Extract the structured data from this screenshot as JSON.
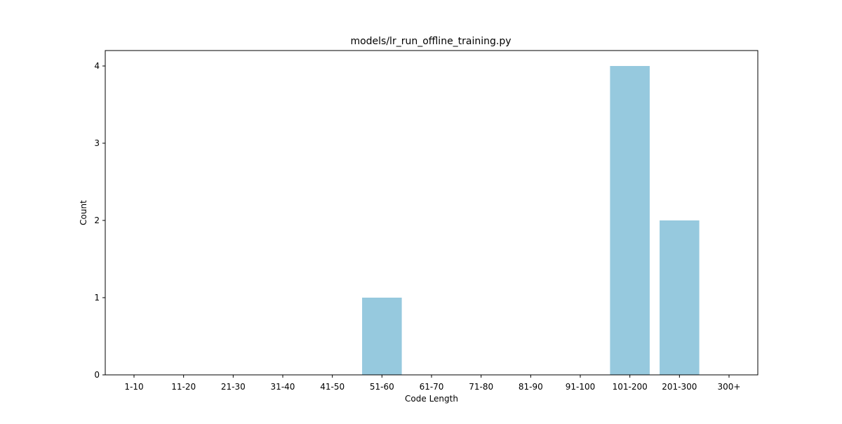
{
  "chart_data": {
    "type": "bar",
    "title": "models/lr_run_offline_training.py",
    "xlabel": "Code Length",
    "ylabel": "Count",
    "categories": [
      "1-10",
      "11-20",
      "21-30",
      "31-40",
      "41-50",
      "51-60",
      "61-70",
      "71-80",
      "81-90",
      "91-100",
      "101-200",
      "201-300",
      "300+"
    ],
    "values": [
      0,
      0,
      0,
      0,
      0,
      1,
      0,
      0,
      0,
      0,
      4,
      2,
      0
    ],
    "ylim": [
      0,
      4.2
    ],
    "yticks": [
      0,
      1,
      2,
      3,
      4
    ],
    "bar_color": "#96c9de",
    "grid": false,
    "legend": "none"
  }
}
